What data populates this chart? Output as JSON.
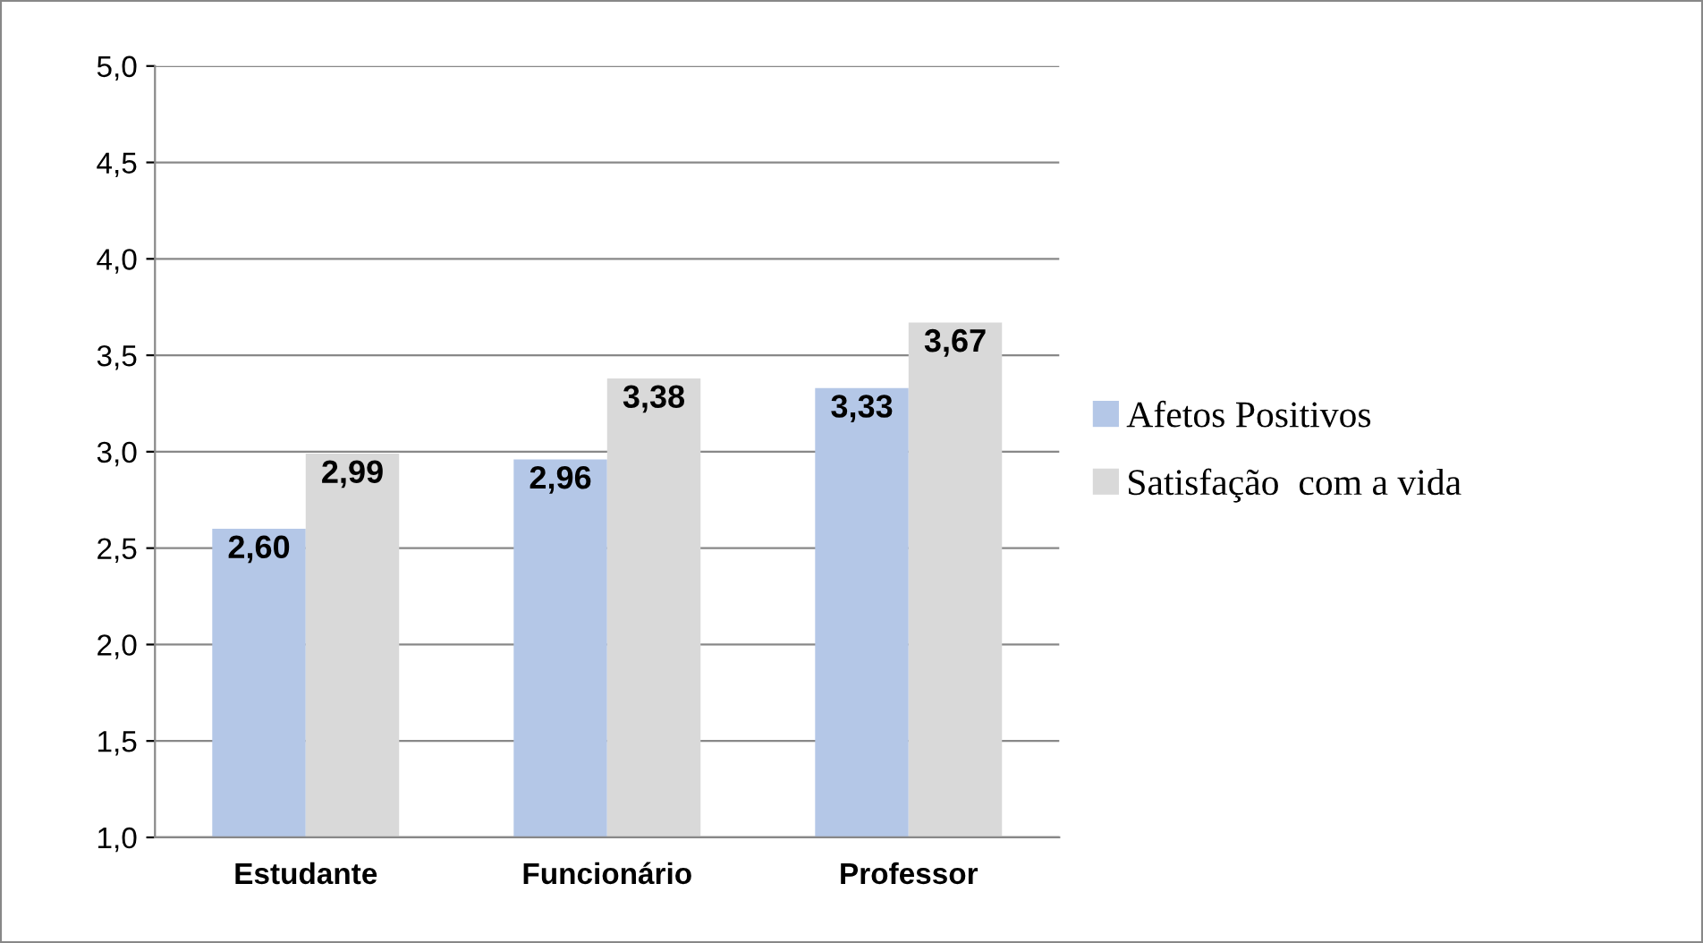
{
  "chart_data": {
    "type": "bar",
    "categories": [
      "Estudante",
      "Funcionário",
      "Professor"
    ],
    "series": [
      {
        "name": "Afetos Positivos",
        "color": "#b4c7e7",
        "values": [
          2.6,
          2.96,
          3.33
        ],
        "value_labels": [
          "2,60",
          "2,96",
          "3,33"
        ]
      },
      {
        "name": "Satisfação  com a vida",
        "color": "#d9d9d9",
        "values": [
          2.99,
          3.38,
          3.67
        ],
        "value_labels": [
          "2,99",
          "3,38",
          "3,67"
        ]
      }
    ],
    "ylim": [
      1,
      5
    ],
    "yticks": [
      {
        "value": 1,
        "label": "1,0"
      },
      {
        "value": 1.5,
        "label": "1,5"
      },
      {
        "value": 2,
        "label": "2,0"
      },
      {
        "value": 2.5,
        "label": "2,5"
      },
      {
        "value": 3,
        "label": "3,0"
      },
      {
        "value": 3.5,
        "label": "3,5"
      },
      {
        "value": 4,
        "label": "4,0"
      },
      {
        "value": 4.5,
        "label": "4,5"
      },
      {
        "value": 5,
        "label": "5,0"
      }
    ],
    "grid": "y",
    "legend": "right"
  }
}
